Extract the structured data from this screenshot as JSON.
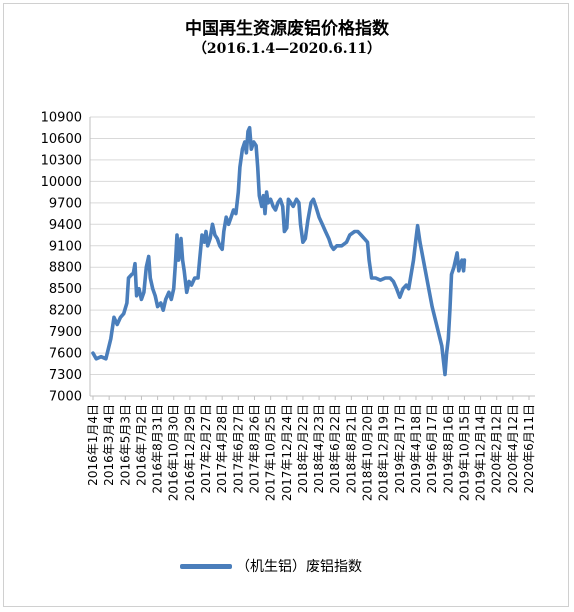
{
  "chart_data": {
    "type": "line",
    "title": "中国再生资源废铝价格指数",
    "subtitle": "（2016.1.4—2020.6.11）",
    "ylim": [
      7000,
      10900
    ],
    "yticks": [
      7000,
      7300,
      7600,
      7900,
      8200,
      8500,
      8800,
      9100,
      9400,
      9700,
      10000,
      10300,
      10600,
      10900
    ],
    "grid": true,
    "legend_position": "bottom",
    "line_color": "#4a7ebb",
    "x_tick_labels": [
      "2016年1月4日",
      "2016年3月4日",
      "2016年5月3日",
      "2016年7月2日",
      "2016年8月31日",
      "2016年10月30日",
      "2016年12月29日",
      "2017年2月27日",
      "2017年4月28日",
      "2017年6月27日",
      "2017年8月26日",
      "2017年10月25日",
      "2017年12月24日",
      "2018年2月22日",
      "2018年4月23日",
      "2018年6月22日",
      "2018年8月21日",
      "2018年10月20日",
      "2018年12月19日",
      "2019年2月17日",
      "2019年4月18日",
      "2019年6月17日",
      "2019年8月16日",
      "2019年10月15日",
      "2019年12月14日",
      "2020年2月12日",
      "2020年4月12日",
      "2020年6月11日"
    ],
    "series": [
      {
        "name": "（机生铝）废铝指数",
        "values": [
          [
            0,
            7600
          ],
          [
            0.2,
            7520
          ],
          [
            0.5,
            7550
          ],
          [
            0.8,
            7520
          ],
          [
            1.1,
            7800
          ],
          [
            1.3,
            8100
          ],
          [
            1.5,
            8000
          ],
          [
            1.7,
            8100
          ],
          [
            1.9,
            8150
          ],
          [
            2.1,
            8300
          ],
          [
            2.2,
            8650
          ],
          [
            2.4,
            8700
          ],
          [
            2.5,
            8720
          ],
          [
            2.6,
            8850
          ],
          [
            2.7,
            8400
          ],
          [
            2.85,
            8500
          ],
          [
            3.0,
            8350
          ],
          [
            3.15,
            8450
          ],
          [
            3.3,
            8800
          ],
          [
            3.45,
            8950
          ],
          [
            3.55,
            8650
          ],
          [
            3.7,
            8500
          ],
          [
            3.85,
            8400
          ],
          [
            4.0,
            8250
          ],
          [
            4.2,
            8300
          ],
          [
            4.35,
            8200
          ],
          [
            4.5,
            8350
          ],
          [
            4.7,
            8450
          ],
          [
            4.85,
            8350
          ],
          [
            5.0,
            8500
          ],
          [
            5.1,
            8850
          ],
          [
            5.2,
            9250
          ],
          [
            5.3,
            8900
          ],
          [
            5.45,
            9200
          ],
          [
            5.55,
            8900
          ],
          [
            5.65,
            8750
          ],
          [
            5.8,
            8450
          ],
          [
            5.95,
            8600
          ],
          [
            6.1,
            8550
          ],
          [
            6.3,
            8650
          ],
          [
            6.5,
            8650
          ],
          [
            6.6,
            8900
          ],
          [
            6.75,
            9250
          ],
          [
            6.9,
            9150
          ],
          [
            7.0,
            9300
          ],
          [
            7.1,
            9100
          ],
          [
            7.25,
            9200
          ],
          [
            7.4,
            9400
          ],
          [
            7.55,
            9250
          ],
          [
            7.7,
            9200
          ],
          [
            7.85,
            9100
          ],
          [
            8.0,
            9050
          ],
          [
            8.1,
            9300
          ],
          [
            8.25,
            9500
          ],
          [
            8.4,
            9400
          ],
          [
            8.55,
            9500
          ],
          [
            8.7,
            9600
          ],
          [
            8.85,
            9550
          ],
          [
            9.0,
            9850
          ],
          [
            9.1,
            10200
          ],
          [
            9.25,
            10450
          ],
          [
            9.4,
            10550
          ],
          [
            9.5,
            10400
          ],
          [
            9.6,
            10700
          ],
          [
            9.7,
            10750
          ],
          [
            9.8,
            10450
          ],
          [
            9.95,
            10550
          ],
          [
            10.1,
            10500
          ],
          [
            10.2,
            10200
          ],
          [
            10.3,
            9800
          ],
          [
            10.45,
            9650
          ],
          [
            10.55,
            9800
          ],
          [
            10.65,
            9550
          ],
          [
            10.75,
            9850
          ],
          [
            10.85,
            9700
          ],
          [
            11.0,
            9750
          ],
          [
            11.15,
            9650
          ],
          [
            11.3,
            9600
          ],
          [
            11.45,
            9700
          ],
          [
            11.6,
            9750
          ],
          [
            11.75,
            9650
          ],
          [
            11.85,
            9300
          ],
          [
            12.0,
            9350
          ],
          [
            12.1,
            9750
          ],
          [
            12.25,
            9700
          ],
          [
            12.4,
            9650
          ],
          [
            12.6,
            9750
          ],
          [
            12.75,
            9700
          ],
          [
            12.85,
            9400
          ],
          [
            13.0,
            9150
          ],
          [
            13.15,
            9200
          ],
          [
            13.3,
            9450
          ],
          [
            13.5,
            9700
          ],
          [
            13.65,
            9750
          ],
          [
            13.8,
            9650
          ],
          [
            14.0,
            9500
          ],
          [
            14.2,
            9400
          ],
          [
            14.4,
            9300
          ],
          [
            14.6,
            9200
          ],
          [
            14.75,
            9100
          ],
          [
            14.9,
            9050
          ],
          [
            15.1,
            9100
          ],
          [
            15.4,
            9100
          ],
          [
            15.7,
            9150
          ],
          [
            15.9,
            9250
          ],
          [
            16.2,
            9300
          ],
          [
            16.4,
            9300
          ],
          [
            16.6,
            9250
          ],
          [
            16.8,
            9200
          ],
          [
            17.0,
            9150
          ],
          [
            17.1,
            8900
          ],
          [
            17.25,
            8650
          ],
          [
            17.5,
            8650
          ],
          [
            17.8,
            8620
          ],
          [
            18.1,
            8650
          ],
          [
            18.4,
            8650
          ],
          [
            18.6,
            8600
          ],
          [
            18.8,
            8500
          ],
          [
            19.0,
            8380
          ],
          [
            19.2,
            8500
          ],
          [
            19.4,
            8550
          ],
          [
            19.55,
            8500
          ],
          [
            19.7,
            8700
          ],
          [
            19.85,
            8900
          ],
          [
            20.0,
            9200
          ],
          [
            20.1,
            9380
          ],
          [
            20.25,
            9150
          ],
          [
            21.0,
            8250
          ],
          [
            21.6,
            7700
          ],
          [
            21.8,
            7300
          ],
          [
            21.9,
            7600
          ],
          [
            22.0,
            7800
          ],
          [
            22.1,
            8200
          ],
          [
            22.2,
            8700
          ],
          [
            22.35,
            8800
          ],
          [
            22.45,
            8900
          ],
          [
            22.55,
            9000
          ],
          [
            22.65,
            8750
          ],
          [
            22.75,
            8850
          ],
          [
            22.85,
            8900
          ],
          [
            22.95,
            8750
          ],
          [
            23.0,
            8900
          ]
        ]
      }
    ]
  }
}
